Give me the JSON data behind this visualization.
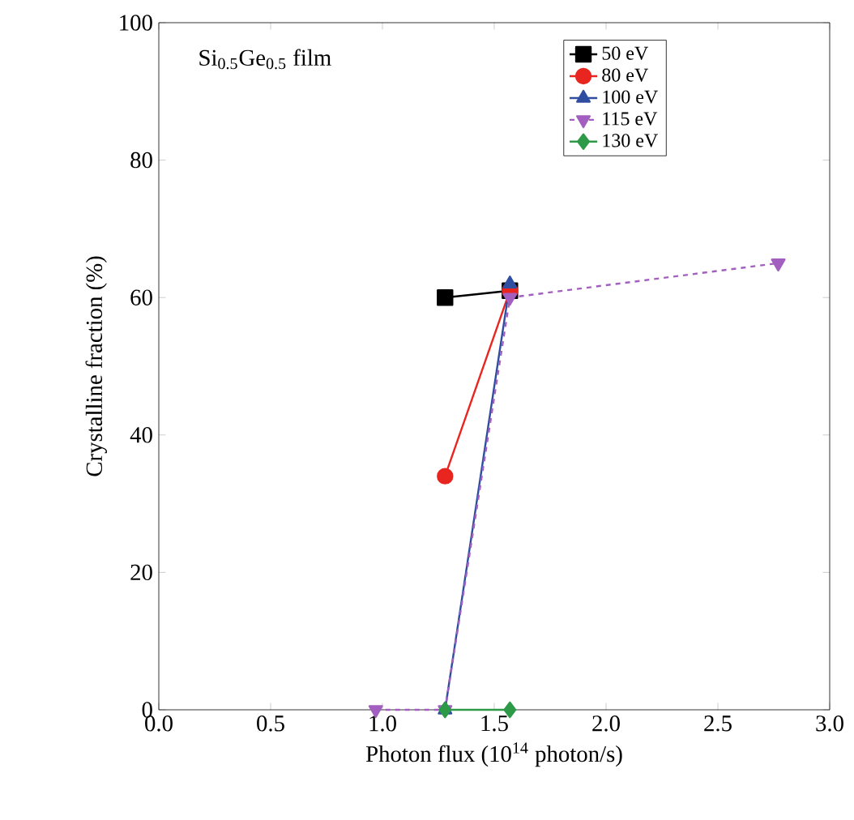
{
  "chart_data": {
    "type": "line",
    "xlabel": "Photon flux (10$^{14}$ photon/s)",
    "ylabel": "Crystalline fraction (%)",
    "annotations": [
      "Si$_{0.5}$Ge$_{0.5}$ film"
    ],
    "xlim": [
      0,
      3
    ],
    "ylim": [
      0,
      100
    ],
    "xticks": [
      {
        "value": 0,
        "label": "0.0"
      },
      {
        "value": 0.5,
        "label": "0.5"
      },
      {
        "value": 1,
        "label": "1.0"
      },
      {
        "value": 1.5,
        "label": "1.5"
      },
      {
        "value": 2,
        "label": "2.0"
      },
      {
        "value": 2.5,
        "label": "2.5"
      },
      {
        "value": 3,
        "label": "3.0"
      }
    ],
    "yticks": [
      0,
      20,
      40,
      60,
      80,
      100
    ],
    "grid": false,
    "legend": "top right",
    "series": [
      {
        "name": "50 eV",
        "color": "#000000",
        "marker": "square",
        "line_style": "solid",
        "x": [
          1.28,
          1.57
        ],
        "values": [
          60,
          61
        ]
      },
      {
        "name": "80 eV",
        "color": "#e8251f",
        "marker": "circle",
        "line_style": "solid",
        "x": [
          1.28,
          1.57
        ],
        "values": [
          34,
          61
        ]
      },
      {
        "name": "100 eV",
        "color": "#2f4ea0",
        "marker": "triangle",
        "line_style": "solid",
        "x": [
          1.28,
          1.57
        ],
        "values": [
          0,
          62
        ]
      },
      {
        "name": "115 eV",
        "color": "#a25fc0",
        "marker": "triangle-down",
        "line_style": "dashed",
        "x": [
          0.97,
          1.28,
          1.57,
          2.77
        ],
        "values": [
          0,
          0,
          60,
          65
        ]
      },
      {
        "name": "130 eV",
        "color": "#2e9a48",
        "marker": "diamond",
        "line_style": "solid",
        "x": [
          1.28,
          1.57
        ],
        "values": [
          0,
          0
        ]
      }
    ]
  }
}
